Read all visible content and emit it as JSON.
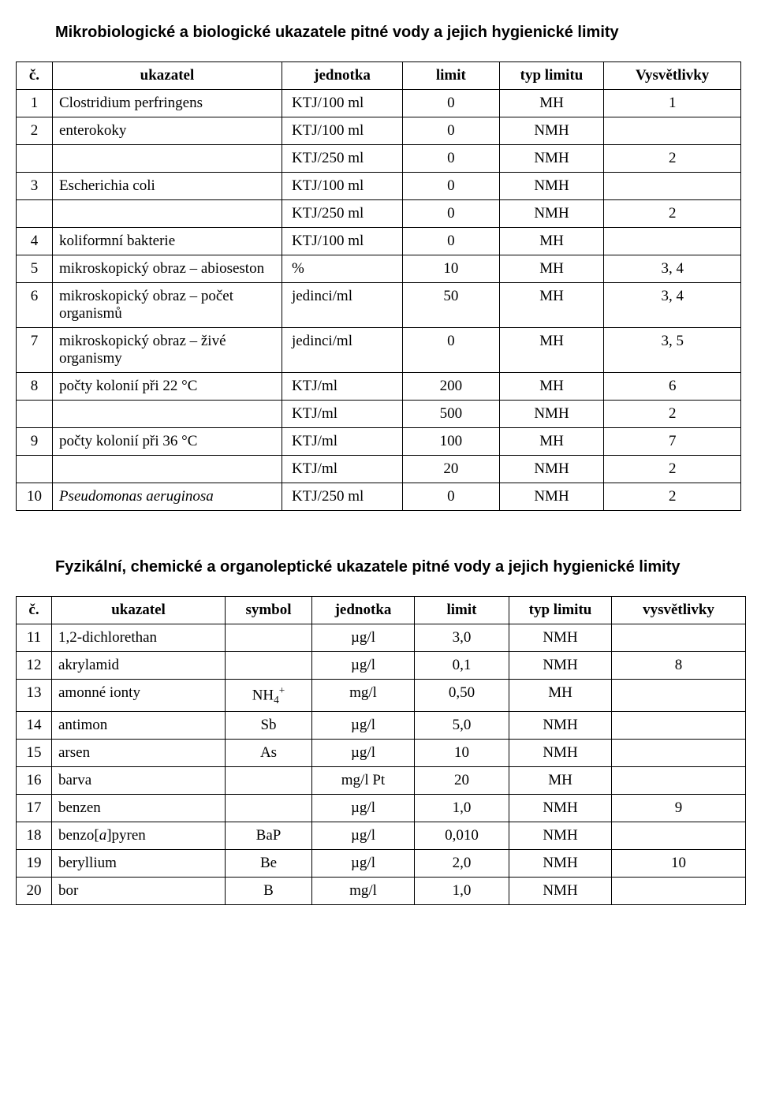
{
  "titles": {
    "t1": "Mikrobiologické a biologické ukazatele pitné vody a jejich hygienické limity",
    "t2": "Fyzikální, chemické a organoleptické ukazatele pitné vody a jejich hygienické limity"
  },
  "table1": {
    "headers": {
      "c1": "č.",
      "c2": "ukazatel",
      "c3": "jednotka",
      "c4": "limit",
      "c5": "typ limitu",
      "c6": "Vysvětlivky"
    },
    "rows": [
      {
        "n": "1",
        "name": "Clostridium perfringens",
        "unit": "KTJ/100 ml",
        "limit": "0",
        "typ": "MH",
        "note": "1"
      },
      {
        "n": "2",
        "name": "enterokoky",
        "unit": "KTJ/100 ml",
        "limit": "0",
        "typ": "NMH",
        "note": ""
      },
      {
        "n": "",
        "name": "",
        "unit": "KTJ/250 ml",
        "limit": "0",
        "typ": "NMH",
        "note": "2"
      },
      {
        "n": "3",
        "name": "Escherichia coli",
        "unit": "KTJ/100 ml",
        "limit": "0",
        "typ": "NMH",
        "note": ""
      },
      {
        "n": "",
        "name": "",
        "unit": "KTJ/250 ml",
        "limit": "0",
        "typ": "NMH",
        "note": "2"
      },
      {
        "n": "4",
        "name": "koliformní bakterie",
        "unit": "KTJ/100 ml",
        "limit": "0",
        "typ": "MH",
        "note": ""
      },
      {
        "n": "5",
        "name": "mikroskopický obraz – abioseston",
        "unit": "%",
        "limit": "10",
        "typ": "MH",
        "note": "3, 4"
      },
      {
        "n": "6",
        "name": "mikroskopický obraz – počet organismů",
        "unit": "jedinci/ml",
        "limit": "50",
        "typ": "MH",
        "note": "3, 4"
      },
      {
        "n": "7",
        "name": "mikroskopický obraz – živé organismy",
        "unit": "jedinci/ml",
        "limit": "0",
        "typ": "MH",
        "note": "3, 5"
      },
      {
        "n": "8",
        "name": "počty kolonií při 22 °C",
        "unit": "KTJ/ml",
        "limit": "200",
        "typ": "MH",
        "note": "6"
      },
      {
        "n": "",
        "name": "",
        "unit": "KTJ/ml",
        "limit": "500",
        "typ": "NMH",
        "note": "2"
      },
      {
        "n": "9",
        "name": "počty kolonií při 36 °C",
        "unit": "KTJ/ml",
        "limit": "100",
        "typ": "MH",
        "note": "7"
      },
      {
        "n": "",
        "name": "",
        "unit": "KTJ/ml",
        "limit": "20",
        "typ": "NMH",
        "note": "2"
      },
      {
        "n": "10",
        "name": "Pseudomonas aeruginosa",
        "nameItalic": true,
        "unit": "KTJ/250 ml",
        "limit": "0",
        "typ": "NMH",
        "note": "2"
      }
    ]
  },
  "table2": {
    "headers": {
      "c1": "č.",
      "c2": "ukazatel",
      "c3": "symbol",
      "c4": "jednotka",
      "c5": "limit",
      "c6": "typ limitu",
      "c7": "vysvětlivky"
    },
    "rows": [
      {
        "n": "11",
        "name": "1,2-dichlorethan",
        "sym": "",
        "unit": "µg/l",
        "limit": "3,0",
        "typ": "NMH",
        "note": ""
      },
      {
        "n": "12",
        "name": "akrylamid",
        "sym": "",
        "unit": "µg/l",
        "limit": "0,1",
        "typ": "NMH",
        "note": "8"
      },
      {
        "n": "13",
        "name": "amonné ionty",
        "symHtml": "NH<sub>4</sub><sup>+</sup>",
        "unit": "mg/l",
        "limit": "0,50",
        "typ": "MH",
        "note": ""
      },
      {
        "n": "14",
        "name": "antimon",
        "sym": "Sb",
        "unit": "µg/l",
        "limit": "5,0",
        "typ": "NMH",
        "note": ""
      },
      {
        "n": "15",
        "name": "arsen",
        "sym": "As",
        "unit": "µg/l",
        "limit": "10",
        "typ": "NMH",
        "note": ""
      },
      {
        "n": "16",
        "name": "barva",
        "sym": "",
        "unit": "mg/l Pt",
        "limit": "20",
        "typ": "MH",
        "note": ""
      },
      {
        "n": "17",
        "name": "benzen",
        "sym": "",
        "unit": "µg/l",
        "limit": "1,0",
        "typ": "NMH",
        "note": "9"
      },
      {
        "n": "18",
        "nameHtml": "benzo[<i>a</i>]pyren",
        "sym": "BaP",
        "unit": "µg/l",
        "limit": "0,010",
        "typ": "NMH",
        "note": ""
      },
      {
        "n": "19",
        "name": "beryllium",
        "sym": "Be",
        "unit": "µg/l",
        "limit": "2,0",
        "typ": "NMH",
        "note": "10"
      },
      {
        "n": "20",
        "name": "bor",
        "sym": "B",
        "unit": "mg/l",
        "limit": "1,0",
        "typ": "NMH",
        "note": ""
      }
    ]
  }
}
